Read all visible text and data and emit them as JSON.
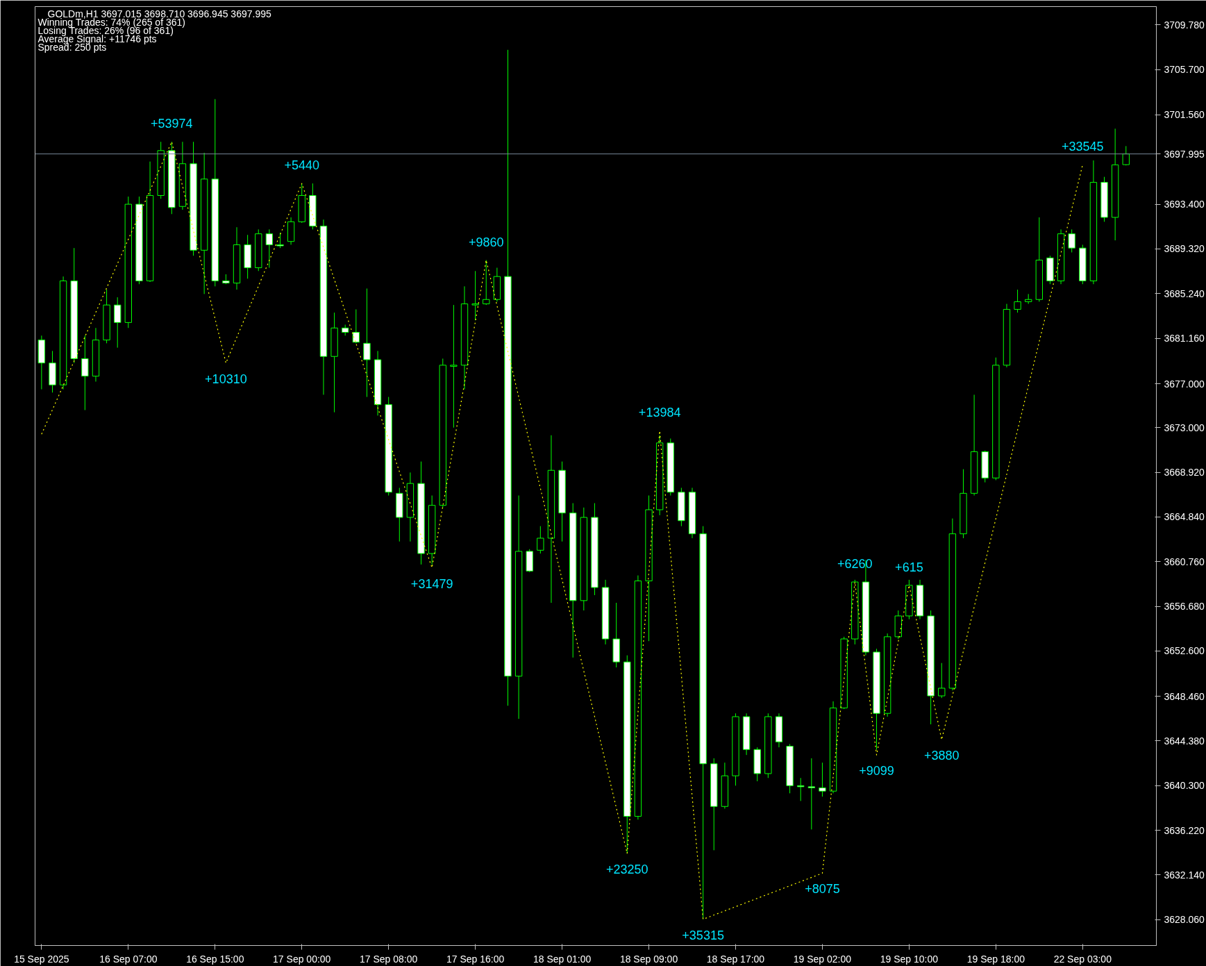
{
  "chart_data": {
    "type": "candlestick",
    "title": "GOLDm,H1  3697.015 3698.710 3696.945 3697.995",
    "annotations": [
      "Winning Trades: 74% (265 of 361)",
      "Losing Trades: 26% (96 of 361)",
      "Average Signal: +11746 pts",
      "Spread: 250 pts",
      {
        "text": "+53974",
        "y": 3699.1
      },
      {
        "text": "+5440",
        "y": 3695.3
      },
      {
        "text": "+10310",
        "y": 3678.9
      },
      {
        "text": "+9860",
        "y": 3688.3
      },
      {
        "text": "+31479",
        "y": 3660.2
      },
      {
        "text": "+13984",
        "y": 3672.7
      },
      {
        "text": "+23250",
        "y": 3634.1
      },
      {
        "text": "+35315",
        "y": 3628.1
      },
      {
        "text": "+6260",
        "y": 3658.9
      },
      {
        "text": "+615",
        "y": 3658.6
      },
      {
        "text": "+9099",
        "y": 3643.1
      },
      {
        "text": "+3880",
        "y": 3644.5
      },
      {
        "text": "+8075",
        "y": 3632.3
      },
      {
        "text": "+33545",
        "y": 3697.0
      }
    ],
    "categories": [
      "15 Sep 2025",
      null,
      null,
      null,
      null,
      null,
      null,
      null,
      "16 Sep 07:00",
      null,
      null,
      null,
      null,
      null,
      null,
      null,
      "16 Sep 15:00",
      null,
      null,
      null,
      null,
      null,
      null,
      null,
      "17 Sep 00:00",
      null,
      null,
      null,
      null,
      null,
      null,
      null,
      "17 Sep 08:00",
      null,
      null,
      null,
      null,
      null,
      null,
      null,
      "17 Sep 16:00",
      null,
      null,
      null,
      null,
      null,
      null,
      null,
      "18 Sep 01:00",
      null,
      null,
      null,
      null,
      null,
      null,
      null,
      "18 Sep 09:00",
      null,
      null,
      null,
      null,
      null,
      null,
      null,
      "18 Sep 17:00",
      null,
      null,
      null,
      null,
      null,
      null,
      null,
      "19 Sep 02:00",
      null,
      null,
      null,
      null,
      null,
      null,
      null,
      "19 Sep 10:00",
      null,
      null,
      null,
      null,
      null,
      null,
      null,
      "19 Sep 18:00",
      null,
      null,
      null,
      null,
      null,
      null,
      null,
      "22 Sep 03:00",
      null,
      null,
      null,
      null
    ],
    "ylim": [
      3625.7,
      3711.45
    ],
    "yticks": [
      {
        "value": 3709.78,
        "label": "3709.780"
      },
      {
        "value": 3705.7,
        "label": "3705.700"
      },
      {
        "value": 3701.56,
        "label": "3701.560"
      },
      {
        "value": 3693.4,
        "label": "3693.400"
      },
      {
        "value": 3689.32,
        "label": "3689.320"
      },
      {
        "value": 3685.24,
        "label": "3685.240"
      },
      {
        "value": 3681.16,
        "label": "3681.160"
      },
      {
        "value": 3677.0,
        "label": "3677.000"
      },
      {
        "value": 3673.0,
        "label": "3673.000"
      },
      {
        "value": 3668.92,
        "label": "3668.920"
      },
      {
        "value": 3664.84,
        "label": "3664.840"
      },
      {
        "value": 3660.76,
        "label": "3660.760"
      },
      {
        "value": 3656.68,
        "label": "3656.680"
      },
      {
        "value": 3652.6,
        "label": "3652.600"
      },
      {
        "value": 3648.46,
        "label": "3648.460"
      },
      {
        "value": 3644.38,
        "label": "3644.380"
      },
      {
        "value": 3640.3,
        "label": "3640.300"
      },
      {
        "value": 3636.22,
        "label": "3636.220"
      },
      {
        "value": 3632.14,
        "label": "3632.140"
      },
      {
        "value": 3628.06,
        "label": "3628.060"
      }
    ],
    "ref_lines": [
      {
        "axis": "y",
        "value": 3697.995,
        "label": "3697.995",
        "color": "#778899"
      }
    ],
    "series": [
      {
        "type": "line",
        "color": "#ffff00",
        "line_style": "dotted",
        "values": [
          3672.4,
          null,
          null,
          null,
          null,
          null,
          null,
          null,
          null,
          null,
          null,
          null,
          3699.1,
          null,
          null,
          null,
          null,
          3678.9,
          null,
          null,
          null,
          null,
          null,
          null,
          3695.3,
          null,
          null,
          null,
          null,
          null,
          null,
          null,
          null,
          null,
          null,
          null,
          3660.2,
          null,
          null,
          null,
          null,
          3688.3,
          null,
          null,
          null,
          null,
          null,
          null,
          null,
          null,
          null,
          null,
          null,
          null,
          3634.1,
          null,
          null,
          3672.7,
          null,
          null,
          null,
          3628.1,
          null,
          null,
          null,
          null,
          null,
          null,
          null,
          null,
          null,
          null,
          3632.3,
          null,
          null,
          3658.9,
          null,
          3643.1,
          null,
          null,
          3658.6,
          null,
          null,
          3644.5,
          null,
          null,
          null,
          null,
          null,
          null,
          null,
          null,
          null,
          null,
          null,
          null,
          3697.0,
          null,
          null,
          null,
          null
        ]
      },
      {
        "color": "#00ff00",
        "ohlc": [
          [
            3681.0,
            3681.4,
            3676.5,
            3678.9
          ],
          [
            3678.9,
            3680.0,
            3676.2,
            3676.9
          ],
          [
            3676.9,
            3686.8,
            3676.5,
            3686.4
          ],
          [
            3686.4,
            3689.4,
            3678.9,
            3679.3
          ],
          [
            3679.3,
            3681.4,
            3674.6,
            3677.7
          ],
          [
            3677.7,
            3682.1,
            3677.2,
            3681.0
          ],
          [
            3681.0,
            3685.6,
            3680.7,
            3684.2
          ],
          [
            3684.2,
            3684.9,
            3680.3,
            3682.6
          ],
          [
            3682.6,
            3694.1,
            3682.1,
            3693.4
          ],
          [
            3693.4,
            3694.1,
            3686.1,
            3686.4
          ],
          [
            3686.4,
            3697.3,
            3686.3,
            3694.2
          ],
          [
            3694.2,
            3699.1,
            3693.9,
            3698.3
          ],
          [
            3698.3,
            3699.1,
            3692.5,
            3693.1
          ],
          [
            3693.2,
            3699.1,
            3692.9,
            3697.1
          ],
          [
            3697.1,
            3699.1,
            3688.7,
            3689.2
          ],
          [
            3689.2,
            3698.1,
            3685.2,
            3695.7
          ],
          [
            3695.7,
            3703.0,
            3685.9,
            3686.4
          ],
          [
            3686.4,
            3687.0,
            3686.1,
            3686.2
          ],
          [
            3686.2,
            3691.3,
            3685.6,
            3689.7
          ],
          [
            3689.7,
            3690.6,
            3686.6,
            3687.6
          ],
          [
            3687.6,
            3691.1,
            3687.3,
            3690.7
          ],
          [
            3690.7,
            3691.1,
            3687.6,
            3689.7
          ],
          [
            3689.7,
            3690.8,
            3689.4,
            3689.6
          ],
          [
            3690.0,
            3692.2,
            3689.7,
            3691.8
          ],
          [
            3691.8,
            3695.3,
            3691.7,
            3694.2
          ],
          [
            3694.2,
            3695.3,
            3691.1,
            3691.4
          ],
          [
            3691.4,
            3692.0,
            3676.0,
            3679.5
          ],
          [
            3679.5,
            3683.5,
            3674.4,
            3682.1
          ],
          [
            3682.1,
            3682.4,
            3681.4,
            3681.7
          ],
          [
            3681.7,
            3683.8,
            3680.7,
            3680.8
          ],
          [
            3680.7,
            3685.7,
            3675.8,
            3679.2
          ],
          [
            3679.2,
            3680.0,
            3674.1,
            3675.1
          ],
          [
            3675.1,
            3675.8,
            3666.8,
            3667.1
          ],
          [
            3667.0,
            3667.5,
            3662.6,
            3664.8
          ],
          [
            3664.8,
            3668.9,
            3662.6,
            3667.9
          ],
          [
            3667.9,
            3669.9,
            3660.5,
            3661.5
          ],
          [
            3661.5,
            3666.8,
            3660.5,
            3665.9
          ],
          [
            3665.9,
            3679.3,
            3665.7,
            3678.7
          ],
          [
            3678.6,
            3684.2,
            3673.0,
            3678.7
          ],
          [
            3678.7,
            3685.9,
            3676.5,
            3684.3
          ],
          [
            3684.2,
            3687.3,
            3682.8,
            3684.3
          ],
          [
            3684.3,
            3688.3,
            3684.2,
            3684.7
          ],
          [
            3684.7,
            3687.6,
            3684.5,
            3686.8
          ],
          [
            3686.8,
            3707.5,
            3647.6,
            3650.3
          ],
          [
            3650.3,
            3666.8,
            3646.4,
            3661.7
          ],
          [
            3661.7,
            3661.9,
            3659.8,
            3659.9
          ],
          [
            3661.8,
            3664.0,
            3661.5,
            3662.9
          ],
          [
            3662.9,
            3672.3,
            3657.0,
            3669.1
          ],
          [
            3669.1,
            3669.9,
            3662.6,
            3665.2
          ],
          [
            3665.2,
            3666.1,
            3652.0,
            3657.2
          ],
          [
            3657.2,
            3665.7,
            3656.3,
            3664.8
          ],
          [
            3664.8,
            3666.1,
            3657.7,
            3658.4
          ],
          [
            3658.4,
            3659.1,
            3653.2,
            3653.7
          ],
          [
            3653.7,
            3657.0,
            3651.1,
            3651.6
          ],
          [
            3651.6,
            3652.2,
            3634.1,
            3637.5
          ],
          [
            3637.5,
            3659.5,
            3637.2,
            3659.0
          ],
          [
            3659.0,
            3666.8,
            3653.5,
            3665.5
          ],
          [
            3665.5,
            3672.3,
            3665.0,
            3671.6
          ],
          [
            3671.6,
            3672.0,
            3666.8,
            3667.1
          ],
          [
            3667.1,
            3667.5,
            3664.0,
            3664.5
          ],
          [
            3667.1,
            3667.5,
            3662.9,
            3663.3
          ],
          [
            3663.3,
            3664.0,
            3628.1,
            3642.3
          ],
          [
            3642.3,
            3642.8,
            3634.4,
            3638.4
          ],
          [
            3638.4,
            3642.4,
            3638.2,
            3641.2
          ],
          [
            3641.2,
            3646.9,
            3640.3,
            3646.6
          ],
          [
            3646.6,
            3646.9,
            3643.1,
            3643.6
          ],
          [
            3643.6,
            3643.8,
            3640.7,
            3641.4
          ],
          [
            3641.4,
            3646.9,
            3641.0,
            3646.6
          ],
          [
            3646.6,
            3646.9,
            3643.8,
            3644.3
          ],
          [
            3643.9,
            3644.1,
            3639.6,
            3640.3
          ],
          [
            3640.3,
            3641.0,
            3638.9,
            3640.2
          ],
          [
            3640.2,
            3642.8,
            3636.3,
            3640.1
          ],
          [
            3640.1,
            3642.4,
            3639.3,
            3639.8
          ],
          [
            3639.8,
            3648.0,
            3639.6,
            3647.4
          ],
          [
            3647.4,
            3653.9,
            3647.3,
            3653.7
          ],
          [
            3653.7,
            3659.1,
            3653.2,
            3658.9
          ],
          [
            3658.9,
            3660.9,
            3652.2,
            3652.5
          ],
          [
            3652.5,
            3652.8,
            3643.6,
            3646.9
          ],
          [
            3646.9,
            3654.2,
            3646.6,
            3653.9
          ],
          [
            3653.9,
            3656.3,
            3653.7,
            3655.8
          ],
          [
            3655.8,
            3659.1,
            3655.5,
            3658.6
          ],
          [
            3658.6,
            3659.1,
            3655.5,
            3655.8
          ],
          [
            3655.8,
            3656.3,
            3645.9,
            3648.5
          ],
          [
            3648.5,
            3651.5,
            3648.3,
            3649.2
          ],
          [
            3649.2,
            3664.7,
            3649.0,
            3663.3
          ],
          [
            3663.3,
            3669.2,
            3662.9,
            3667.0
          ],
          [
            3667.0,
            3676.0,
            3666.8,
            3670.8
          ],
          [
            3670.8,
            3670.9,
            3668.0,
            3668.4
          ],
          [
            3668.4,
            3679.4,
            3668.2,
            3678.7
          ],
          [
            3678.7,
            3684.3,
            3678.5,
            3683.8
          ],
          [
            3683.8,
            3685.6,
            3683.5,
            3684.5
          ],
          [
            3684.5,
            3685.2,
            3684.3,
            3684.7
          ],
          [
            3684.7,
            3692.2,
            3684.5,
            3688.3
          ],
          [
            3688.5,
            3688.7,
            3686.1,
            3686.4
          ],
          [
            3686.4,
            3691.1,
            3686.1,
            3690.7
          ],
          [
            3690.7,
            3691.1,
            3689.0,
            3689.4
          ],
          [
            3689.4,
            3689.7,
            3686.1,
            3686.4
          ],
          [
            3686.4,
            3697.4,
            3686.1,
            3695.4
          ],
          [
            3695.4,
            3695.9,
            3691.8,
            3692.2
          ],
          [
            3692.2,
            3700.3,
            3690.1,
            3697.0
          ],
          [
            3697.015,
            3698.71,
            3696.945,
            3697.995
          ]
        ]
      }
    ]
  }
}
